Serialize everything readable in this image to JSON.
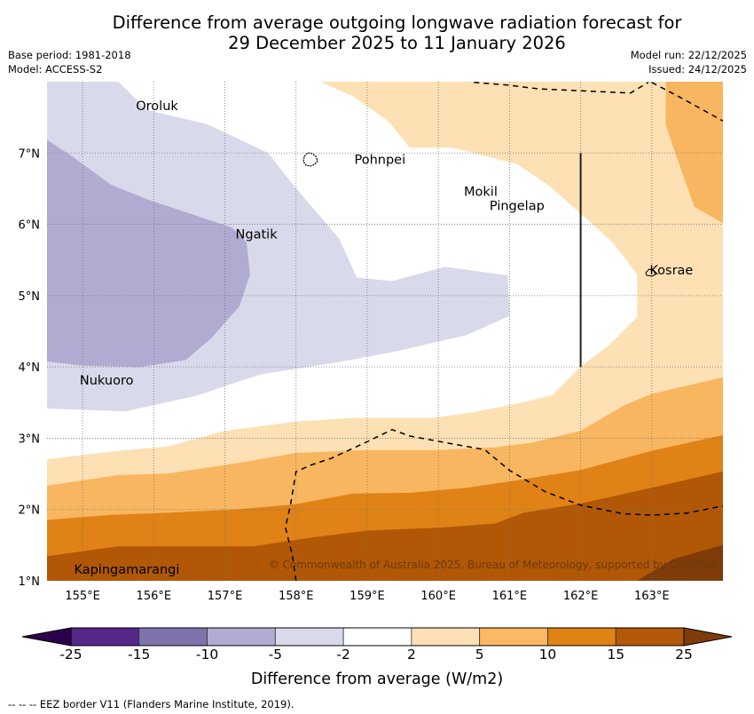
{
  "title_line1": "Difference from average outgoing longwave radiation forecast for",
  "title_line2": "29 December 2025 to 11 January 2026",
  "base_period": "Base period: 1981-2018",
  "model": "Model: ACCESS-S2",
  "model_run": "Model run: 22/12/2025",
  "issued": "Issued: 24/12/2025",
  "copyright": "© Commonwealth of Australia 2025, Bureau of Meteorology, supported by COSPPac",
  "footnote": "--  --  -- EEZ border V11 (Flanders Marine Institute, 2019).",
  "map": {
    "extent": {
      "lon_min": 154.5,
      "lon_max": 164.0,
      "lat_min": 1.0,
      "lat_max": 8.0
    },
    "lon_ticks": [
      {
        "value": 155,
        "label": "155°E"
      },
      {
        "value": 156,
        "label": "156°E"
      },
      {
        "value": 157,
        "label": "157°E"
      },
      {
        "value": 158,
        "label": "158°E"
      },
      {
        "value": 159,
        "label": "159°E"
      },
      {
        "value": 160,
        "label": "160°E"
      },
      {
        "value": 161,
        "label": "161°E"
      },
      {
        "value": 162,
        "label": "162°E"
      },
      {
        "value": 163,
        "label": "163°E"
      }
    ],
    "lat_ticks": [
      {
        "value": 1,
        "label": "1°N"
      },
      {
        "value": 2,
        "label": "2°N"
      },
      {
        "value": 3,
        "label": "3°N"
      },
      {
        "value": 4,
        "label": "4°N"
      },
      {
        "value": 5,
        "label": "5°N"
      },
      {
        "value": 6,
        "label": "6°N"
      },
      {
        "value": 7,
        "label": "7°N"
      }
    ],
    "places": [
      {
        "name": "Oroluk",
        "lon": 155.75,
        "lat": 7.6
      },
      {
        "name": "Pohnpei",
        "lon": 158.82,
        "lat": 6.85
      },
      {
        "name": "Ngatik",
        "lon": 157.15,
        "lat": 5.8
      },
      {
        "name": "Mokil",
        "lon": 160.36,
        "lat": 6.4
      },
      {
        "name": "Pingelap",
        "lon": 160.72,
        "lat": 6.2
      },
      {
        "name": "Kosrae",
        "lon": 162.97,
        "lat": 5.3
      },
      {
        "name": "Nukuoro",
        "lon": 154.96,
        "lat": 3.75
      },
      {
        "name": "Kapingamarangi",
        "lon": 154.88,
        "lat": 1.1
      }
    ],
    "contours": [
      {
        "level": "-5 to -2",
        "color": "#d8d9ea",
        "points": [
          [
            154.5,
            8.0
          ],
          [
            155.5,
            8.0
          ],
          [
            155.9,
            7.6
          ],
          [
            156.75,
            7.4
          ],
          [
            157.6,
            7.0
          ],
          [
            158.0,
            6.5
          ],
          [
            158.6,
            5.8
          ],
          [
            158.85,
            5.25
          ],
          [
            159.35,
            5.2
          ],
          [
            160.1,
            5.4
          ],
          [
            160.97,
            5.28
          ],
          [
            161.0,
            4.72
          ],
          [
            160.4,
            4.45
          ],
          [
            159.4,
            4.22
          ],
          [
            158.6,
            4.07
          ],
          [
            157.5,
            3.9
          ],
          [
            156.6,
            3.6
          ],
          [
            155.6,
            3.38
          ],
          [
            154.5,
            3.42
          ]
        ]
      },
      {
        "level": "-10 to -5",
        "color": "#b1abd1",
        "points": [
          [
            154.5,
            7.18
          ],
          [
            154.85,
            6.95
          ],
          [
            155.4,
            6.55
          ],
          [
            155.9,
            6.35
          ],
          [
            156.5,
            6.15
          ],
          [
            157.1,
            5.95
          ],
          [
            157.3,
            5.75
          ],
          [
            157.35,
            5.3
          ],
          [
            157.2,
            4.85
          ],
          [
            156.8,
            4.4
          ],
          [
            156.45,
            4.1
          ],
          [
            155.8,
            4.0
          ],
          [
            155.0,
            4.02
          ],
          [
            154.5,
            4.08
          ]
        ]
      },
      {
        "level": "2 to 5",
        "color": "#fde0b4",
        "points": [
          [
            158.35,
            8.0
          ],
          [
            164.0,
            8.0
          ],
          [
            164.0,
            3.85
          ],
          [
            163.0,
            3.65
          ],
          [
            162.2,
            3.2
          ],
          [
            161.6,
            3.6
          ],
          [
            162.0,
            4.0
          ],
          [
            162.4,
            4.3
          ],
          [
            162.8,
            4.7
          ],
          [
            162.8,
            5.3
          ],
          [
            162.45,
            5.75
          ],
          [
            161.95,
            6.2
          ],
          [
            161.55,
            6.55
          ],
          [
            161.1,
            6.85
          ],
          [
            160.2,
            7.08
          ],
          [
            159.6,
            7.08
          ],
          [
            159.3,
            7.45
          ],
          [
            158.8,
            7.8
          ]
        ]
      },
      {
        "level": "2 to 5",
        "color": "#fde0b4",
        "points": [
          [
            154.5,
            2.7
          ],
          [
            155.5,
            2.82
          ],
          [
            156.2,
            2.88
          ],
          [
            157.0,
            3.1
          ],
          [
            158.0,
            3.23
          ],
          [
            158.8,
            3.28
          ],
          [
            159.9,
            3.28
          ],
          [
            160.5,
            3.36
          ],
          [
            161.2,
            3.5
          ],
          [
            161.6,
            3.6
          ],
          [
            162.2,
            3.2
          ],
          [
            163.0,
            3.65
          ],
          [
            164.0,
            3.85
          ],
          [
            164.0,
            1.0
          ],
          [
            154.5,
            1.0
          ]
        ]
      },
      {
        "level": "5 to 10",
        "color": "#f8b660",
        "points": [
          [
            154.5,
            2.33
          ],
          [
            155.5,
            2.48
          ],
          [
            156.2,
            2.5
          ],
          [
            157.2,
            2.65
          ],
          [
            158.0,
            2.79
          ],
          [
            159.0,
            2.83
          ],
          [
            160.0,
            2.83
          ],
          [
            160.8,
            2.87
          ],
          [
            161.3,
            2.93
          ],
          [
            162.0,
            3.1
          ],
          [
            162.6,
            3.45
          ],
          [
            163.0,
            3.62
          ],
          [
            164.0,
            3.85
          ],
          [
            164.0,
            1.0
          ],
          [
            154.5,
            1.0
          ]
        ]
      },
      {
        "level": "5 to 10",
        "color": "#f8b660",
        "points": [
          [
            163.2,
            8.0
          ],
          [
            164.0,
            8.0
          ],
          [
            164.0,
            6.02
          ],
          [
            163.6,
            6.25
          ],
          [
            163.35,
            6.95
          ],
          [
            163.2,
            7.4
          ]
        ]
      },
      {
        "level": "10 to 15",
        "color": "#e08216",
        "points": [
          [
            154.5,
            1.85
          ],
          [
            155.4,
            1.92
          ],
          [
            156.2,
            1.95
          ],
          [
            157.2,
            2.0
          ],
          [
            158.0,
            2.07
          ],
          [
            158.8,
            2.22
          ],
          [
            159.6,
            2.23
          ],
          [
            160.4,
            2.3
          ],
          [
            161.2,
            2.42
          ],
          [
            162.0,
            2.55
          ],
          [
            163.0,
            2.82
          ],
          [
            164.0,
            3.04
          ],
          [
            164.0,
            1.0
          ],
          [
            154.5,
            1.0
          ]
        ]
      },
      {
        "level": "15 to 25",
        "color": "#b15705",
        "points": [
          [
            154.5,
            1.34
          ],
          [
            155.5,
            1.48
          ],
          [
            156.5,
            1.48
          ],
          [
            157.4,
            1.48
          ],
          [
            158.2,
            1.6
          ],
          [
            159.0,
            1.7
          ],
          [
            160.0,
            1.74
          ],
          [
            160.8,
            1.8
          ],
          [
            161.2,
            1.95
          ],
          [
            162.0,
            2.08
          ],
          [
            163.0,
            2.3
          ],
          [
            164.0,
            2.53
          ],
          [
            164.0,
            1.0
          ],
          [
            154.5,
            1.0
          ]
        ]
      },
      {
        "level": "> 25",
        "color": "#7f3b08",
        "points": [
          [
            162.8,
            1.0
          ],
          [
            163.3,
            1.3
          ],
          [
            164.0,
            1.5
          ],
          [
            164.0,
            1.0
          ]
        ]
      }
    ],
    "eez_lines": [
      [
        [
          158.0,
          1.0
        ],
        [
          157.95,
          1.35
        ],
        [
          157.85,
          1.75
        ],
        [
          157.92,
          2.05
        ],
        [
          158.0,
          2.53
        ],
        [
          158.2,
          2.62
        ],
        [
          158.5,
          2.72
        ],
        [
          159.0,
          2.95
        ],
        [
          159.35,
          3.12
        ],
        [
          159.6,
          3.03
        ],
        [
          160.2,
          2.92
        ],
        [
          160.65,
          2.84
        ],
        [
          161.0,
          2.55
        ],
        [
          161.5,
          2.25
        ],
        [
          162.0,
          2.06
        ],
        [
          162.6,
          1.94
        ],
        [
          163.0,
          1.92
        ],
        [
          163.5,
          1.95
        ],
        [
          164.0,
          2.05
        ]
      ],
      [
        [
          160.5,
          7.99
        ],
        [
          161.0,
          7.95
        ],
        [
          161.4,
          7.9
        ],
        [
          162.7,
          7.84
        ],
        [
          162.95,
          7.99
        ]
      ],
      [
        [
          163.0,
          7.99
        ],
        [
          163.4,
          7.78
        ],
        [
          164.0,
          7.45
        ]
      ]
    ],
    "meridian_line": {
      "lon": 162.0,
      "lat_from": 4.0,
      "lat_to": 7.0
    }
  },
  "colorbar": {
    "title": "Difference from average (W/m2)",
    "under_color": "#2d004b",
    "over_color": "#7f3b08",
    "bins": [
      {
        "from": -25,
        "to": -15,
        "color": "#542788"
      },
      {
        "from": -15,
        "to": -10,
        "color": "#8073ac"
      },
      {
        "from": -10,
        "to": -5,
        "color": "#b2abd2"
      },
      {
        "from": -5,
        "to": -2,
        "color": "#d8daeb"
      },
      {
        "from": -2,
        "to": 2,
        "color": "#ffffff"
      },
      {
        "from": 2,
        "to": 5,
        "color": "#fee0b6"
      },
      {
        "from": 5,
        "to": 10,
        "color": "#fdb863"
      },
      {
        "from": 10,
        "to": 15,
        "color": "#e08214"
      },
      {
        "from": 15,
        "to": 25,
        "color": "#b35806"
      }
    ],
    "tick_labels": [
      "-25",
      "-15",
      "-10",
      "-5",
      "-2",
      "2",
      "5",
      "10",
      "15",
      "25"
    ]
  }
}
